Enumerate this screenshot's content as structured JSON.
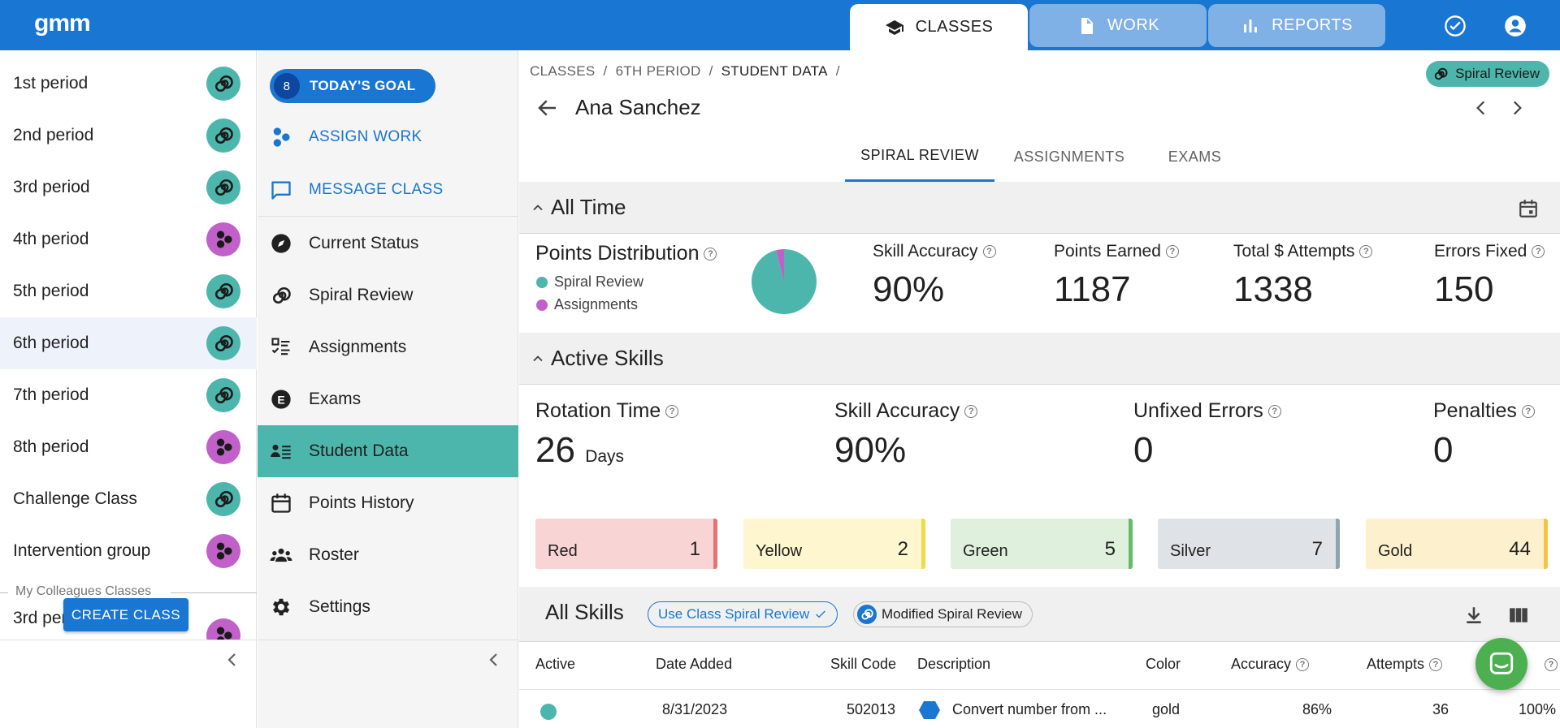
{
  "app": {
    "logo": "gmm"
  },
  "nav": {
    "tabs": [
      {
        "label": "CLASSES",
        "icon": "graduation-cap-icon",
        "active": true
      },
      {
        "label": "WORK",
        "icon": "document-icon",
        "active": false
      },
      {
        "label": "REPORTS",
        "icon": "bar-chart-icon",
        "active": false
      }
    ]
  },
  "classes": {
    "items": [
      {
        "label": "1st period",
        "icon": "spiral-icon"
      },
      {
        "label": "2nd period",
        "icon": "spiral-icon"
      },
      {
        "label": "3rd period",
        "icon": "spiral-icon"
      },
      {
        "label": "4th period",
        "icon": "assignments-icon"
      },
      {
        "label": "5th period",
        "icon": "spiral-icon"
      },
      {
        "label": "6th period",
        "icon": "spiral-icon",
        "selected": true
      },
      {
        "label": "7th period",
        "icon": "spiral-icon"
      },
      {
        "label": "8th period",
        "icon": "assignments-icon"
      },
      {
        "label": "Challenge Class",
        "icon": "spiral-icon"
      },
      {
        "label": "Intervention group",
        "icon": "assignments-icon"
      }
    ],
    "colleagues_label": "My Colleagues Classes",
    "colleague_items": [
      {
        "label": "3rd period Group B",
        "icon": "assignments-icon"
      }
    ],
    "create_button": "CREATE CLASS",
    "colors": {
      "spiral": "#4db6ac",
      "assignments": "#c060c8"
    }
  },
  "class_menu": {
    "goal": {
      "count": "8",
      "label": "TODAY'S GOAL"
    },
    "actions": [
      {
        "label": "ASSIGN WORK",
        "icon": "hexagons-icon"
      },
      {
        "label": "MESSAGE CLASS",
        "icon": "message-icon"
      }
    ],
    "items": [
      {
        "label": "Current Status",
        "icon": "compass-icon"
      },
      {
        "label": "Spiral Review",
        "icon": "spiral-icon"
      },
      {
        "label": "Assignments",
        "icon": "checklist-icon"
      },
      {
        "label": "Exams",
        "icon": "exam-icon"
      },
      {
        "label": "Student Data",
        "icon": "student-data-icon",
        "selected": true
      },
      {
        "label": "Points History",
        "icon": "calendar-icon"
      },
      {
        "label": "Roster",
        "icon": "people-icon"
      },
      {
        "label": "Settings",
        "icon": "gear-icon"
      }
    ]
  },
  "main": {
    "breadcrumb": [
      "CLASSES",
      "6TH PERIOD",
      "STUDENT DATA"
    ],
    "mode_chip": "Spiral Review",
    "student_name": "Ana Sanchez",
    "subtabs": [
      {
        "label": "SPIRAL REVIEW",
        "active": true
      },
      {
        "label": "ASSIGNMENTS",
        "active": false
      },
      {
        "label": "EXAMS",
        "active": false
      }
    ],
    "all_time": {
      "title": "All Time",
      "points_distribution": {
        "label": "Points Distribution",
        "legend": [
          {
            "label": "Spiral Review",
            "color": "#4db6ac",
            "share": 0.96
          },
          {
            "label": "Assignments",
            "color": "#c060c8",
            "share": 0.04
          }
        ]
      },
      "stats": [
        {
          "label": "Skill Accuracy",
          "value": "90%"
        },
        {
          "label": "Points Earned",
          "value": "1187"
        },
        {
          "label": "Total $ Attempts",
          "value": "1338"
        },
        {
          "label": "Errors Fixed",
          "value": "150"
        }
      ]
    },
    "active_skills": {
      "title": "Active Skills",
      "stats": [
        {
          "label": "Rotation Time",
          "value": "26",
          "unit": "Days"
        },
        {
          "label": "Skill Accuracy",
          "value": "90%"
        },
        {
          "label": "Unfixed Errors",
          "value": "0"
        },
        {
          "label": "Penalties",
          "value": "0"
        }
      ],
      "levels": [
        {
          "label": "Red",
          "count": "1",
          "bg": "#f8d4d4",
          "accent": "#e57373"
        },
        {
          "label": "Yellow",
          "count": "2",
          "bg": "#fdf6cf",
          "accent": "#f2d94b"
        },
        {
          "label": "Green",
          "count": "5",
          "bg": "#dff0dc",
          "accent": "#66bb6a"
        },
        {
          "label": "Silver",
          "count": "7",
          "bg": "#dfe2e6",
          "accent": "#90a4ae"
        },
        {
          "label": "Gold",
          "count": "44",
          "bg": "#fdf0cc",
          "accent": "#f5c542"
        }
      ]
    },
    "all_skills": {
      "title": "All Skills",
      "chip_class": "Use Class Spiral Review",
      "chip_modified": "Modified Spiral Review",
      "columns": [
        "Active",
        "Date Added",
        "Skill Code",
        "Description",
        "Color",
        "Accuracy",
        "Attempts"
      ],
      "rows": [
        {
          "date": "8/31/2023",
          "code": "502013",
          "description": "Convert number from ...",
          "color": "gold",
          "accuracy": "86%",
          "attempts": "36",
          "last": "100%"
        }
      ]
    }
  }
}
